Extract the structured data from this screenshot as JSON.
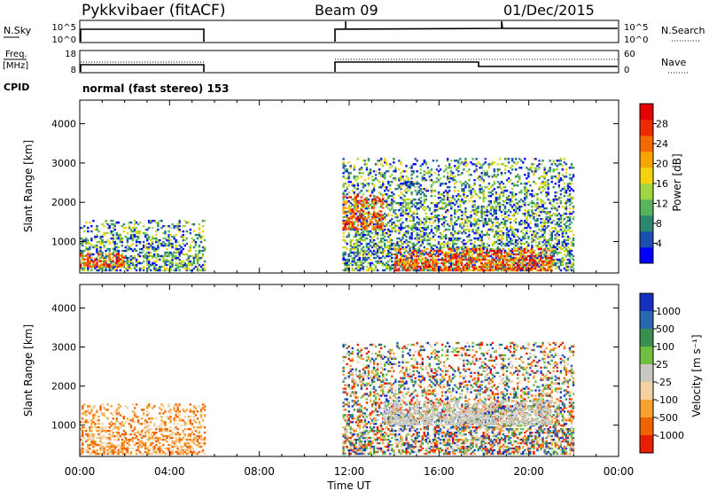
{
  "header": {
    "station": "Pykkvibaer (fitACF)",
    "beam": "Beam 09",
    "date": "01/Dec/2015"
  },
  "top_panels": {
    "nsky_label": "N.Sky",
    "nsky_ticks": [
      "10^5",
      "10^0"
    ],
    "nsearch_label": "N.Search",
    "nsearch_ticks": [
      "10^5",
      "10^0"
    ],
    "freq_label_line1": "Freq.",
    "freq_label_line2": "[MHz]",
    "freq_ticks": [
      "18",
      "8"
    ],
    "nave_label": "Nave",
    "nave_ticks": [
      "60",
      "0"
    ],
    "cpid_label": "CPID",
    "mode_text": "normal (fast stereo) 153"
  },
  "chart_data": [
    {
      "type": "heatmap",
      "name": "power",
      "xlabel": "Time UT",
      "ylabel": "Slant Range [km]",
      "ylim": [
        200,
        4600
      ],
      "xlim_hours": [
        0,
        24
      ],
      "x_ticks": [
        "00:00",
        "04:00",
        "08:00",
        "12:00",
        "16:00",
        "20:00",
        "00:00"
      ],
      "y_ticks": [
        "1000",
        "2000",
        "3000",
        "4000"
      ],
      "colorbar": {
        "label": "Power [dB]",
        "ticks": [
          "4",
          "8",
          "12",
          "16",
          "20",
          "24",
          "28"
        ],
        "colors": [
          "#0000ff",
          "#1a4fb0",
          "#2b8a6e",
          "#56b45a",
          "#9fd640",
          "#f4d20c",
          "#f7a500",
          "#f46a00",
          "#ee2a00",
          "#e60000"
        ]
      },
      "regions": [
        {
          "t": [
            0.0,
            5.6
          ],
          "r": [
            250,
            1550
          ],
          "level": "low-mid"
        },
        {
          "t": [
            0.0,
            2.0
          ],
          "r": [
            350,
            700
          ],
          "level": "high"
        },
        {
          "t": [
            11.7,
            22.0
          ],
          "r": [
            250,
            3100
          ],
          "level": "low-mid"
        },
        {
          "t": [
            11.7,
            13.5
          ],
          "r": [
            1300,
            2200
          ],
          "level": "high"
        },
        {
          "t": [
            14.0,
            21.0
          ],
          "r": [
            250,
            800
          ],
          "level": "high"
        }
      ]
    },
    {
      "type": "heatmap",
      "name": "velocity",
      "xlabel": "Time UT",
      "ylabel": "Slant Range [km]",
      "ylim": [
        200,
        4600
      ],
      "xlim_hours": [
        0,
        24
      ],
      "x_ticks": [
        "00:00",
        "04:00",
        "08:00",
        "12:00",
        "16:00",
        "20:00",
        "00:00"
      ],
      "y_ticks": [
        "1000",
        "2000",
        "3000",
        "4000"
      ],
      "colorbar": {
        "label": "Velocity [m s⁻¹]",
        "ticks": [
          "1000",
          "500",
          "100",
          "25",
          "-25",
          "-100",
          "-500",
          "-1000"
        ],
        "colors": [
          "#1530c0",
          "#2868b0",
          "#3a8e50",
          "#70c040",
          "#c8c8c0",
          "#f4d0a0",
          "#f8a030",
          "#f06400",
          "#e81e00"
        ]
      },
      "regions": [
        {
          "t": [
            0.0,
            5.6
          ],
          "r": [
            250,
            1550
          ],
          "level": "negative"
        },
        {
          "t": [
            11.7,
            22.0
          ],
          "r": [
            250,
            3100
          ],
          "level": "mixed"
        },
        {
          "t": [
            13.5,
            21.0
          ],
          "r": [
            1000,
            1600
          ],
          "level": "near-zero"
        }
      ]
    }
  ]
}
